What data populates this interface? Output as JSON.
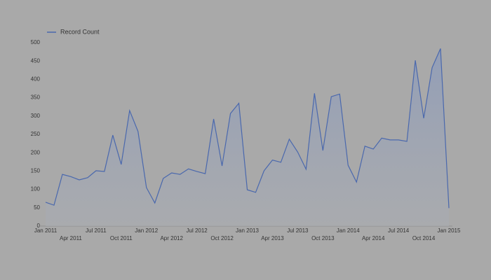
{
  "chart_data": {
    "type": "area",
    "categories": [
      "Jan 2011",
      null,
      null,
      "Apr 2011",
      null,
      null,
      "Jul 2011",
      null,
      null,
      "Oct 2011",
      null,
      null,
      "Jan 2012",
      null,
      null,
      "Apr 2012",
      null,
      null,
      "Jul 2012",
      null,
      null,
      "Oct 2012",
      null,
      null,
      "Jan 2013",
      null,
      null,
      "Apr 2013",
      null,
      null,
      "Jul 2013",
      null,
      null,
      "Oct 2013",
      null,
      null,
      "Jan 2014",
      null,
      null,
      "Apr 2014",
      null,
      null,
      "Jul 2014",
      null,
      null,
      "Oct 2014",
      null,
      null,
      "Jan 2015"
    ],
    "series": [
      {
        "name": "Record Count",
        "color": "#4a68ad",
        "values": [
          65,
          57,
          141,
          135,
          126,
          132,
          151,
          149,
          248,
          168,
          315,
          258,
          105,
          63,
          130,
          145,
          141,
          156,
          149,
          143,
          292,
          164,
          307,
          335,
          99,
          92,
          151,
          180,
          174,
          237,
          202,
          155,
          362,
          206,
          353,
          360,
          166,
          120,
          218,
          210,
          240,
          235,
          235,
          231,
          452,
          294,
          432,
          484,
          49
        ]
      }
    ],
    "ylim": [
      0,
      500
    ],
    "yticks": [
      0,
      50,
      100,
      150,
      200,
      250,
      300,
      350,
      400,
      450,
      500
    ],
    "grid": false,
    "legend": "top-left"
  }
}
